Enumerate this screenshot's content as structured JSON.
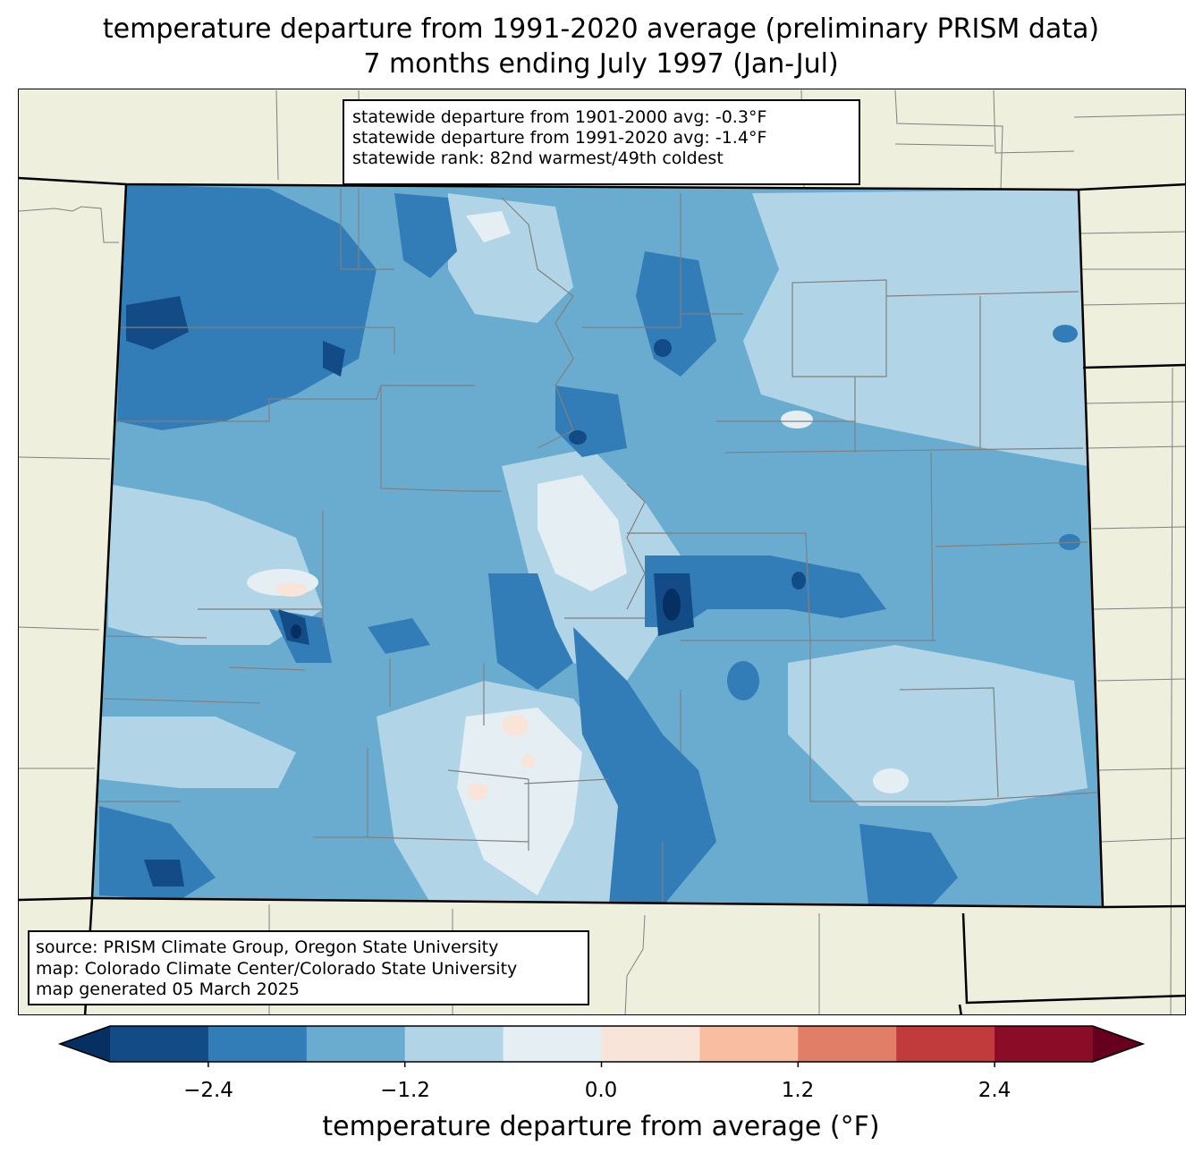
{
  "title": {
    "line1": "temperature departure from 1991-2020 average (preliminary PRISM data)",
    "line2": "7 months ending July 1997 (Jan-Jul)"
  },
  "stats": {
    "line1": "statewide departure from 1901-2000 avg: -0.3°F",
    "line2": "statewide departure from 1991-2020 avg: -1.4°F",
    "line3": "statewide rank: 82nd warmest/49th coldest"
  },
  "source": {
    "line1": "source: PRISM Climate Group, Oregon State University",
    "line2": "map: Colorado Climate Center/Colorado State University",
    "line3": "map generated 05 March 2025"
  },
  "colorbar": {
    "label": "temperature departure from average (°F)",
    "ticks": [
      "−2.4",
      "−1.2",
      "0.0",
      "1.2",
      "2.4"
    ],
    "bins": [
      -3.0,
      -2.4,
      -1.8,
      -1.2,
      -0.6,
      0.0,
      0.6,
      1.2,
      1.8,
      2.4,
      3.0
    ],
    "colors": [
      "#053061",
      "#134b87",
      "#327db7",
      "#6aacd0",
      "#b1d5e7",
      "#e5eef3",
      "#f9e4d9",
      "#f9bda1",
      "#e07e67",
      "#c13b3c",
      "#8a0c26",
      "#67001f"
    ]
  },
  "colors": {
    "land": "#efefdd",
    "state_border": "#000000",
    "county_border": "#808080"
  }
}
